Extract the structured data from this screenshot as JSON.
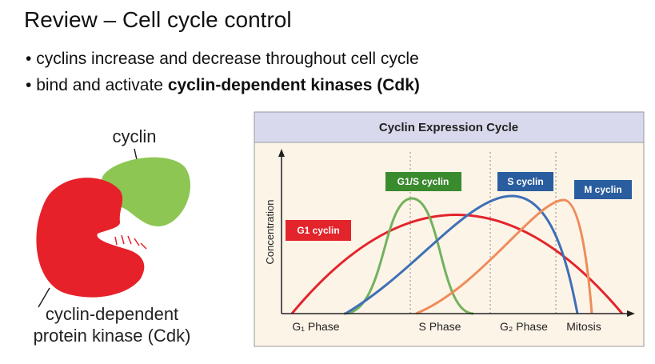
{
  "slide": {
    "title": "Review – Cell cycle control",
    "bullets": [
      [
        "cyclins increase and decrease throughout cell cycle"
      ],
      [
        "bind and activate ",
        "cyclin-dependent kinases (Cdk)"
      ]
    ]
  },
  "illustration": {
    "cyclin_label": "cyclin",
    "cdk_label": [
      "cyclin-dependent",
      "protein kinase (Cdk)"
    ]
  },
  "figure": {
    "title": "Cyclin Expression Cycle",
    "y_label": "Concentration",
    "phases": [
      "G₁ Phase",
      "S Phase",
      "G₂ Phase",
      "Mitosis"
    ],
    "curves": [
      "G1 cyclin",
      "G1/S cyclin",
      "S cyclin",
      "M cyclin"
    ]
  }
}
